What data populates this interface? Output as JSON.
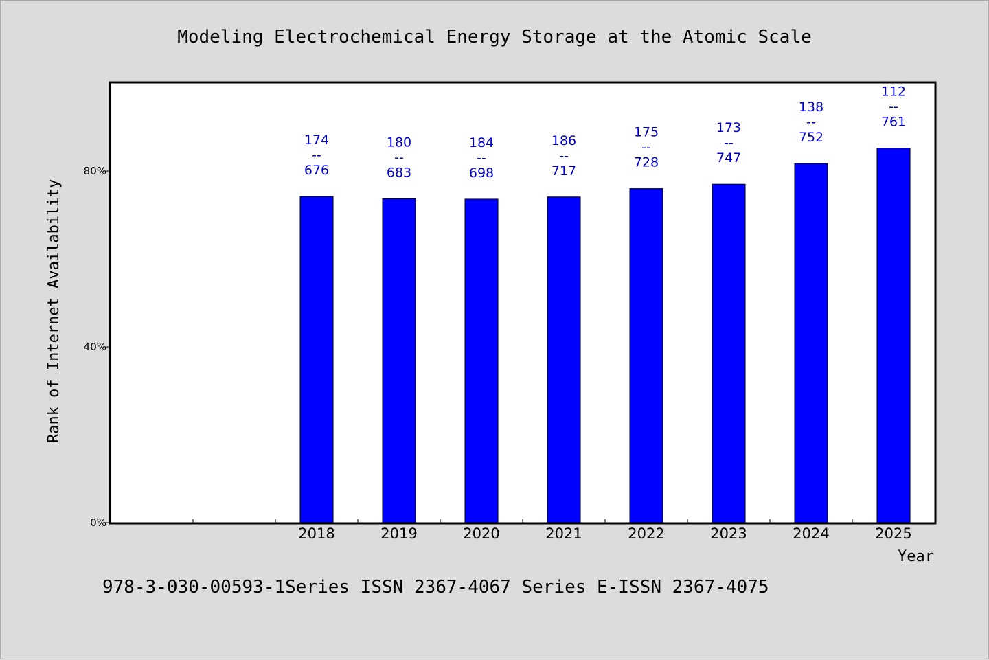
{
  "footer": "978-3-030-00593-1Series ISSN 2367-4067 Series E-ISSN 2367-4075",
  "chart_data": {
    "type": "bar",
    "title": "Modeling Electrochemical Energy Storage at the Atomic Scale",
    "xlabel": "Year",
    "ylabel": "Rank of Internet Availability",
    "ylim": [
      0,
      100
    ],
    "yticks": [
      {
        "value": 0,
        "label": "0%"
      },
      {
        "value": 40,
        "label": "40%"
      },
      {
        "value": 80,
        "label": "80%"
      }
    ],
    "categories": [
      "",
      "",
      "2018",
      "2019",
      "2020",
      "2021",
      "2022",
      "2023",
      "2024",
      "2025"
    ],
    "values": [
      null,
      null,
      74.2,
      73.7,
      73.6,
      74.1,
      76.0,
      77.0,
      81.7,
      85.2
    ],
    "data_labels": [
      null,
      null,
      [
        "174",
        "--",
        "676"
      ],
      [
        "180",
        "--",
        "683"
      ],
      [
        "184",
        "--",
        "698"
      ],
      [
        "186",
        "--",
        "717"
      ],
      [
        "175",
        "--",
        "728"
      ],
      [
        "173",
        "--",
        "747"
      ],
      [
        "138",
        "--",
        "752"
      ],
      [
        "112",
        "--",
        "761"
      ]
    ],
    "bar_color": "#0000ff",
    "grid": false,
    "legend": "none"
  }
}
